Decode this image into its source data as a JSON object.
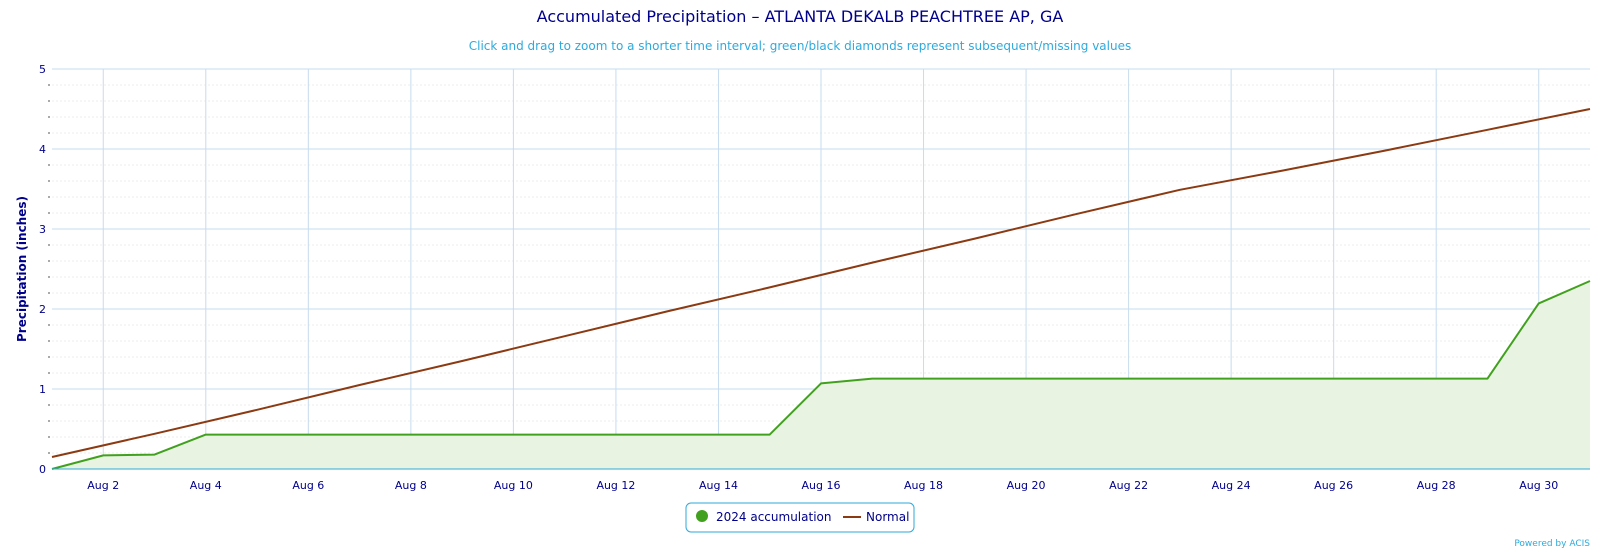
{
  "chart_data": {
    "type": "area",
    "title": "Accumulated Precipitation – ATLANTA DEKALB PEACHTREE AP, GA",
    "subtitle": "Click and drag to zoom to a shorter time interval; green/black diamonds represent subsequent/missing values",
    "xlabel": "",
    "ylabel": "Precipitation (inches)",
    "xlim": [
      1,
      31
    ],
    "ylim": [
      0,
      5
    ],
    "y_ticks": [
      0,
      1,
      2,
      3,
      4,
      5
    ],
    "x_ticks": [
      {
        "day": 2,
        "label": "Aug 2"
      },
      {
        "day": 4,
        "label": "Aug 4"
      },
      {
        "day": 6,
        "label": "Aug 6"
      },
      {
        "day": 8,
        "label": "Aug 8"
      },
      {
        "day": 10,
        "label": "Aug 10"
      },
      {
        "day": 12,
        "label": "Aug 12"
      },
      {
        "day": 14,
        "label": "Aug 14"
      },
      {
        "day": 16,
        "label": "Aug 16"
      },
      {
        "day": 18,
        "label": "Aug 18"
      },
      {
        "day": 20,
        "label": "Aug 20"
      },
      {
        "day": 22,
        "label": "Aug 22"
      },
      {
        "day": 24,
        "label": "Aug 24"
      },
      {
        "day": 26,
        "label": "Aug 26"
      },
      {
        "day": 28,
        "label": "Aug 28"
      },
      {
        "day": 30,
        "label": "Aug 30"
      }
    ],
    "grid": true,
    "legend_position": "bottom-center",
    "series": [
      {
        "name": "2024 accumulation",
        "type": "area",
        "color": "#41a11e",
        "fill": "#e8f4e1",
        "x": [
          1,
          2,
          3,
          4,
          5,
          6,
          7,
          8,
          9,
          10,
          11,
          12,
          13,
          14,
          15,
          16,
          17,
          18,
          19,
          20,
          21,
          22,
          23,
          24,
          25,
          26,
          27,
          28,
          29,
          30,
          31
        ],
        "values": [
          0.0,
          0.17,
          0.18,
          0.43,
          0.43,
          0.43,
          0.43,
          0.43,
          0.43,
          0.43,
          0.43,
          0.43,
          0.43,
          0.43,
          0.43,
          1.07,
          1.13,
          1.13,
          1.13,
          1.13,
          1.13,
          1.13,
          1.13,
          1.13,
          1.13,
          1.13,
          1.13,
          1.13,
          1.13,
          2.07,
          2.35
        ]
      },
      {
        "name": "Normal",
        "type": "line",
        "color": "#8b3a12",
        "x": [
          1,
          3,
          5,
          7,
          9,
          11,
          13,
          15,
          17,
          19,
          21,
          23,
          25,
          27,
          29,
          31
        ],
        "values": [
          0.15,
          0.44,
          0.74,
          1.05,
          1.35,
          1.66,
          1.97,
          2.27,
          2.58,
          2.88,
          3.19,
          3.49,
          3.73,
          3.98,
          4.24,
          4.5
        ]
      }
    ]
  },
  "credit": "Powered by ACIS",
  "colors": {
    "grid_major": "#c6dcef",
    "grid_minor": "#eeeeee",
    "axis": "#2eaadc",
    "title": "#00008b",
    "subtitle": "#2eaadc",
    "legend_border": "#2eaadc"
  }
}
